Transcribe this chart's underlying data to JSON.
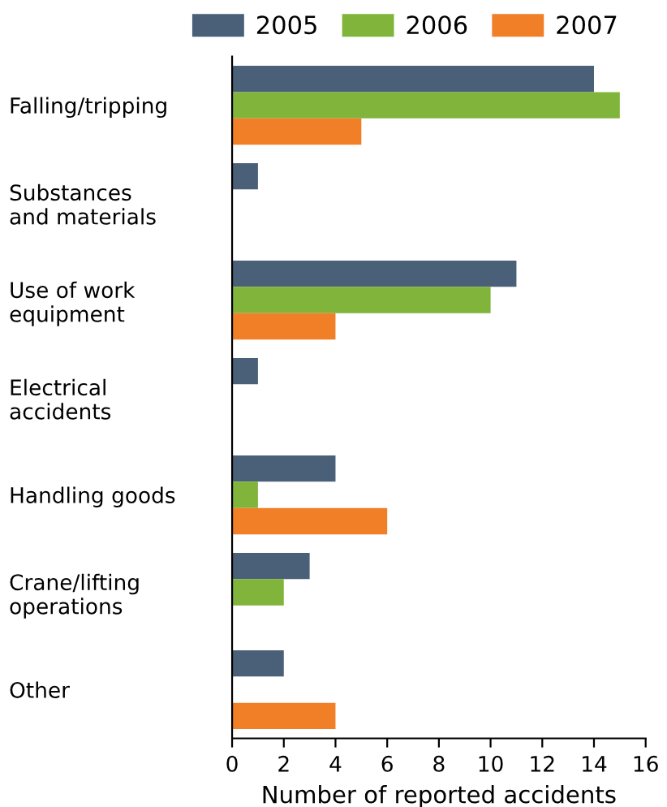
{
  "chart_data": {
    "type": "bar",
    "orientation": "horizontal",
    "xlabel": "Number of reported accidents",
    "categories": [
      "Falling/tripping",
      "Substances\nand materials",
      "Use of work\nequipment",
      "Electrical\naccidents",
      "Handling goods",
      "Crane/lifting\noperations",
      "Other"
    ],
    "series": [
      {
        "name": "2005",
        "color": "#4a5f78",
        "values": [
          14,
          1,
          11,
          1,
          4,
          3,
          2
        ]
      },
      {
        "name": "2006",
        "color": "#80b43a",
        "values": [
          15,
          null,
          10,
          null,
          1,
          2,
          null
        ]
      },
      {
        "name": "2007",
        "color": "#f07f28",
        "values": [
          5,
          null,
          4,
          null,
          6,
          null,
          4
        ]
      }
    ],
    "xlim": [
      0,
      16
    ],
    "xticks": [
      0,
      2,
      4,
      6,
      8,
      10,
      12,
      14,
      16
    ],
    "grid": false,
    "legend": "top"
  }
}
